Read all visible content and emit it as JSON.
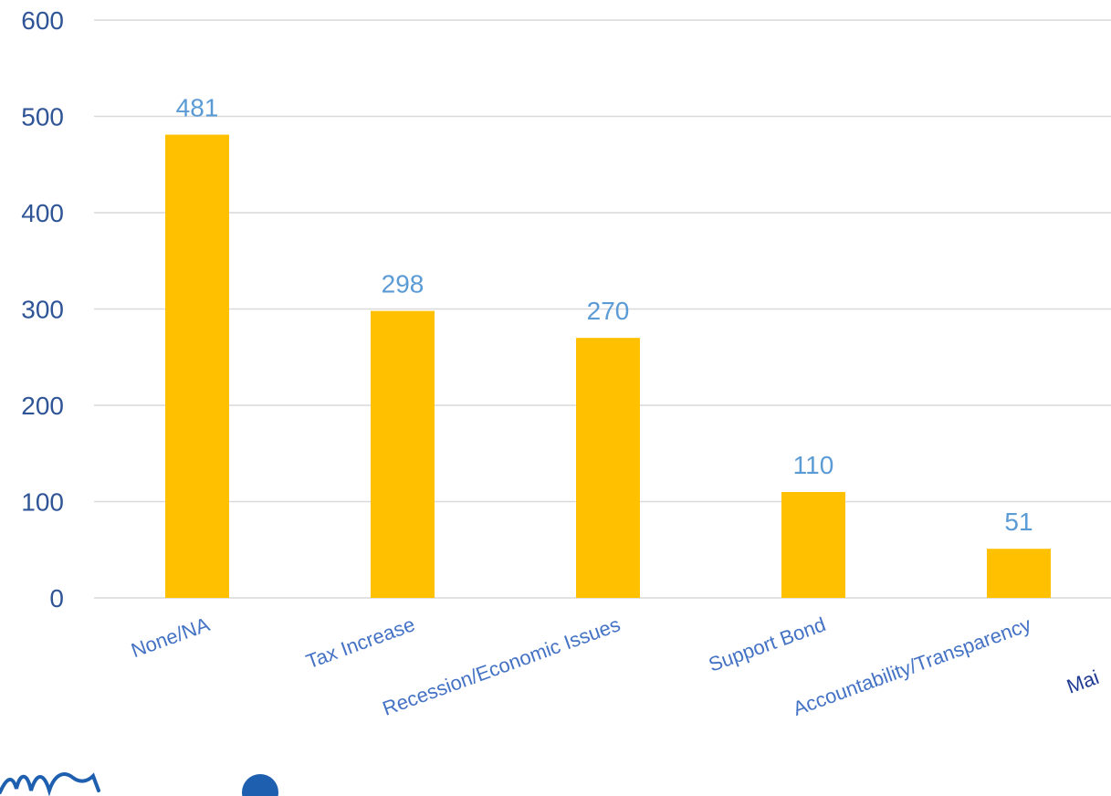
{
  "chart_data": {
    "type": "bar",
    "title": "",
    "xlabel": "",
    "ylabel": "",
    "categories": [
      "None/NA",
      "Tax Increase",
      "Recession/Economic Issues",
      "Support Bond",
      "Accountability/Transparency"
    ],
    "values": [
      481,
      298,
      270,
      110,
      51
    ],
    "data_labels": [
      "481",
      "298",
      "270",
      "110",
      "51"
    ],
    "ylim": [
      0,
      600
    ],
    "yticks": [
      "0",
      "100",
      "200",
      "300",
      "400",
      "500",
      "600"
    ],
    "grid": true,
    "legend": "none",
    "clipped_category_fragment": "Mai",
    "colors": {
      "bar": "#FFC000",
      "tick_text": "#2F5597",
      "data_label": "#5B9BD5",
      "category_text": "#4472C4",
      "gridline": "#D9D9D9",
      "fragment_text": "#1F3A93",
      "logo_ink": "#1F5FAF"
    }
  }
}
